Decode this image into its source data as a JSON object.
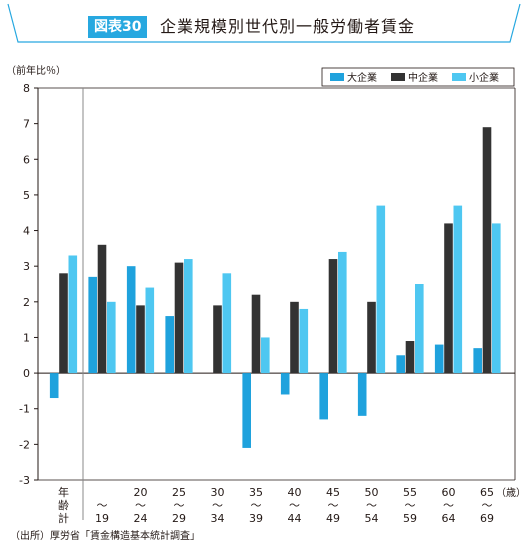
{
  "header": {
    "figure_no": "図表30",
    "title": "企業規模別世代別一般労働者賃金"
  },
  "chart_data": {
    "type": "bar",
    "ylabel": "（前年比％）",
    "xunit": "（歳）",
    "ylim": [
      -3,
      8
    ],
    "yticks": [
      -3,
      -2,
      -1,
      0,
      1,
      2,
      3,
      4,
      5,
      6,
      7,
      8
    ],
    "legend_position": "top-right",
    "categories": [
      [
        "年",
        "齢",
        "計"
      ],
      [
        "〜",
        "19"
      ],
      [
        "20",
        "〜",
        "24"
      ],
      [
        "25",
        "〜",
        "29"
      ],
      [
        "30",
        "〜",
        "34"
      ],
      [
        "35",
        "〜",
        "39"
      ],
      [
        "40",
        "〜",
        "44"
      ],
      [
        "45",
        "〜",
        "49"
      ],
      [
        "50",
        "〜",
        "54"
      ],
      [
        "55",
        "〜",
        "59"
      ],
      [
        "60",
        "〜",
        "64"
      ],
      [
        "65",
        "〜",
        "69"
      ]
    ],
    "series": [
      {
        "name": "大企業",
        "color": "#1fa2dd",
        "values": [
          -0.7,
          2.7,
          3.0,
          1.6,
          null,
          -2.1,
          -0.6,
          -1.3,
          -1.2,
          0.5,
          0.8,
          0.7
        ]
      },
      {
        "name": "中企業",
        "color": "#333333",
        "values": [
          2.8,
          3.6,
          1.9,
          3.1,
          1.9,
          2.2,
          2.0,
          3.2,
          2.0,
          0.9,
          4.2,
          6.9
        ]
      },
      {
        "name": "小企業",
        "color": "#4ec7f1",
        "values": [
          3.3,
          2.0,
          2.4,
          3.2,
          2.8,
          1.0,
          1.8,
          3.4,
          4.7,
          2.5,
          4.7,
          4.2
        ]
      }
    ]
  },
  "source": "（出所）厚労省「賃金構造基本統計調査」"
}
